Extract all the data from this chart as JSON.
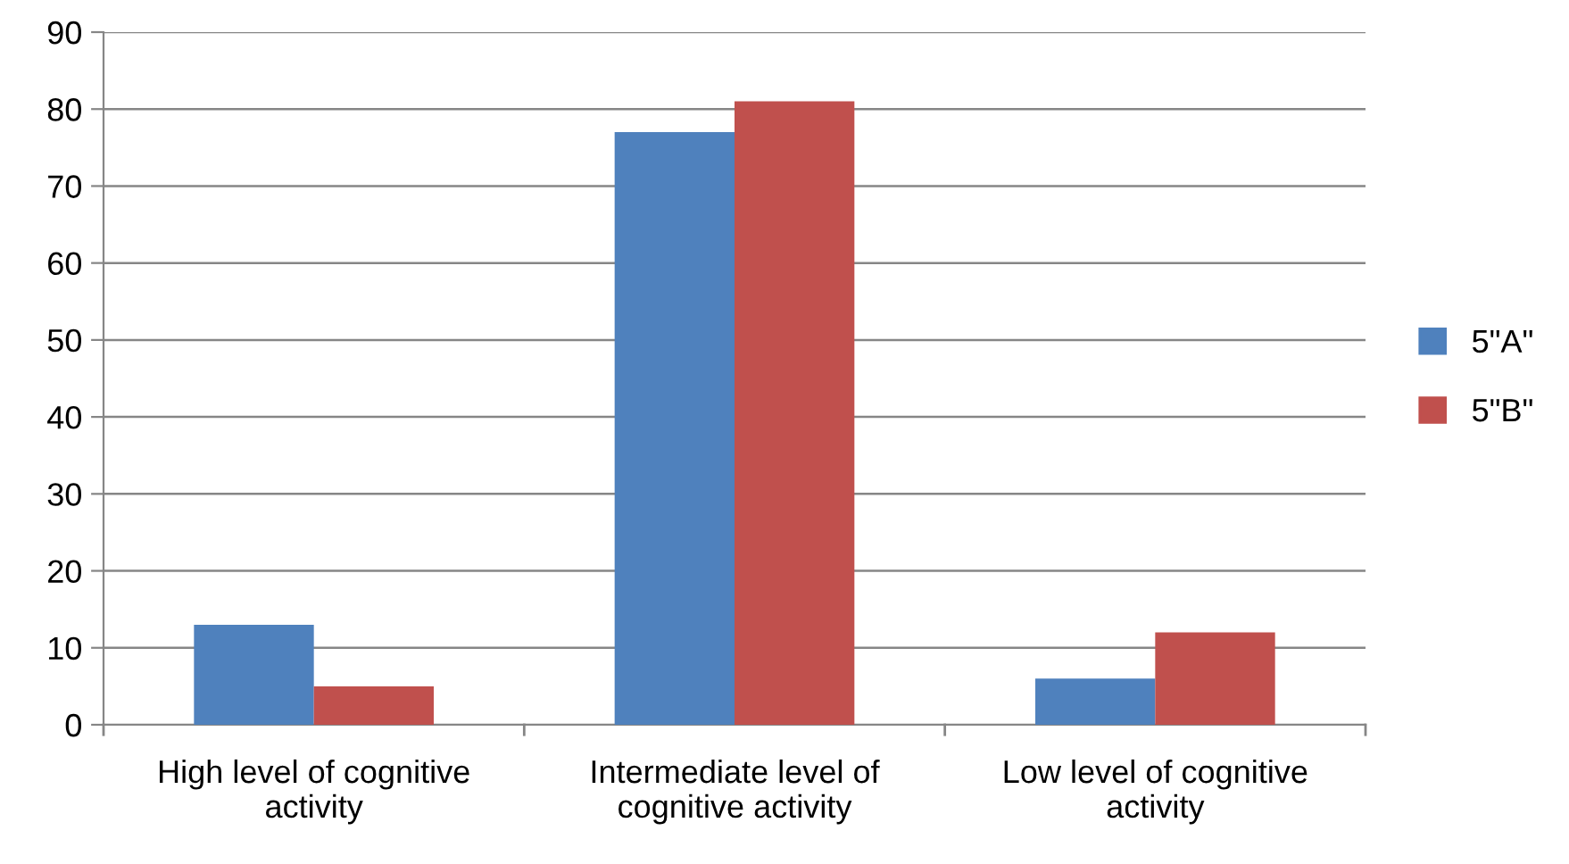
{
  "chart_data": {
    "type": "bar",
    "categories": [
      "High level of cognitive\nactivity",
      "Intermediate level of\ncognitive activity",
      "Low level of cognitive\nactivity"
    ],
    "series": [
      {
        "name": "5\"A\"",
        "color": "#4f81bd",
        "values": [
          13,
          77,
          6
        ]
      },
      {
        "name": "5\"B\"",
        "color": "#c0504d",
        "values": [
          5,
          81,
          12
        ]
      }
    ],
    "ylim": [
      0,
      90
    ],
    "yticks": [
      0,
      10,
      20,
      30,
      40,
      50,
      60,
      70,
      80,
      90
    ],
    "grid": "y",
    "legend": "right"
  }
}
